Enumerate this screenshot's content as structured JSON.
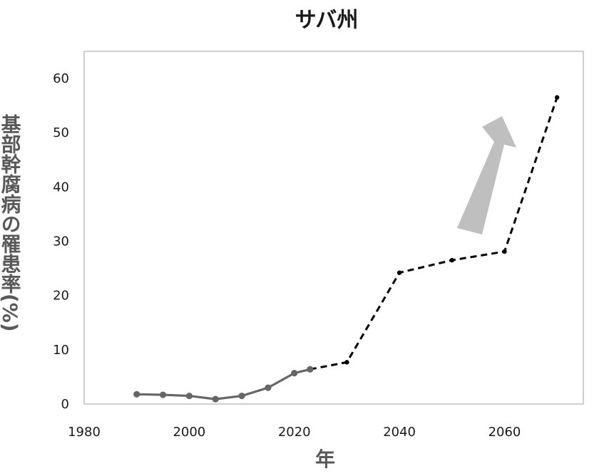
{
  "chart_data": {
    "type": "line",
    "title": "サバ州",
    "xlabel": "年",
    "ylabel": "基部幹腐病の罹患率(%)",
    "xlim": [
      1980,
      2075
    ],
    "ylim": [
      0,
      65
    ],
    "x_ticks": [
      1980,
      2000,
      2020,
      2040,
      2060
    ],
    "y_ticks": [
      0,
      10,
      20,
      30,
      40,
      50,
      60
    ],
    "grid": false,
    "series": [
      {
        "style": "solid",
        "color": "#666666",
        "points": [
          {
            "x": 1990,
            "y": 1.8
          },
          {
            "x": 1995,
            "y": 1.7
          },
          {
            "x": 2000,
            "y": 1.5
          },
          {
            "x": 2005,
            "y": 0.9
          },
          {
            "x": 2010,
            "y": 1.5
          },
          {
            "x": 2015,
            "y": 3.0
          },
          {
            "x": 2020,
            "y": 5.7
          },
          {
            "x": 2023,
            "y": 6.4
          }
        ]
      },
      {
        "style": "dashed",
        "color": "#000000",
        "points": [
          {
            "x": 2023,
            "y": 6.4
          },
          {
            "x": 2030,
            "y": 7.7
          },
          {
            "x": 2040,
            "y": 24.2
          },
          {
            "x": 2050,
            "y": 26.5
          },
          {
            "x": 2060,
            "y": 28.1
          },
          {
            "x": 2070,
            "y": 56.5
          }
        ]
      }
    ],
    "annotations": [
      {
        "type": "arrow",
        "direction": "up-right",
        "color": "#bfbfbf"
      }
    ]
  }
}
